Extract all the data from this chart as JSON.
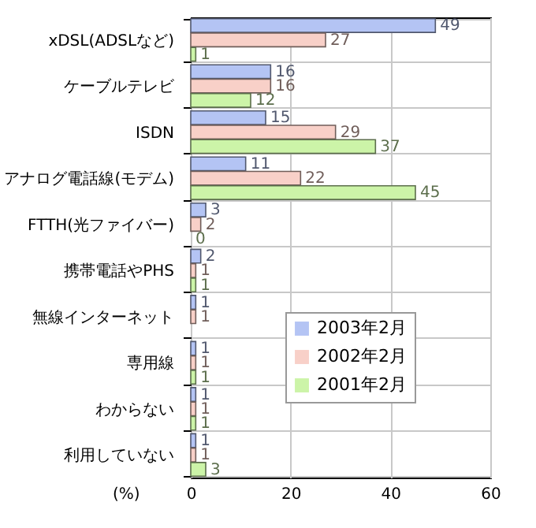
{
  "chart_data": {
    "type": "bar",
    "orientation": "horizontal",
    "categories": [
      "xDSL(ADSLなど)",
      "ケーブルテレビ",
      "ISDN",
      "アナログ電話線(モデム)",
      "FTTH(光ファイバー)",
      "携帯電話やPHS",
      "無線インターネット",
      "専用線",
      "わからない",
      "利用していない"
    ],
    "series": [
      {
        "name": "2003年2月",
        "color": "#b4c4f4",
        "values": [
          49,
          16,
          15,
          11,
          3,
          2,
          1,
          1,
          1,
          1
        ]
      },
      {
        "name": "2002年2月",
        "color": "#f8d0c8",
        "values": [
          27,
          16,
          29,
          22,
          2,
          1,
          1,
          1,
          1,
          1
        ]
      },
      {
        "name": "2001年2月",
        "color": "#ccf4a8",
        "values": [
          1,
          12,
          37,
          45,
          0,
          1,
          null,
          1,
          1,
          3
        ]
      }
    ],
    "xlabel": "(%)",
    "xlim": [
      0,
      60
    ],
    "xticks": [
      0,
      20,
      40,
      60
    ],
    "grid": true,
    "legend": "bottom right",
    "data_labels": true
  }
}
